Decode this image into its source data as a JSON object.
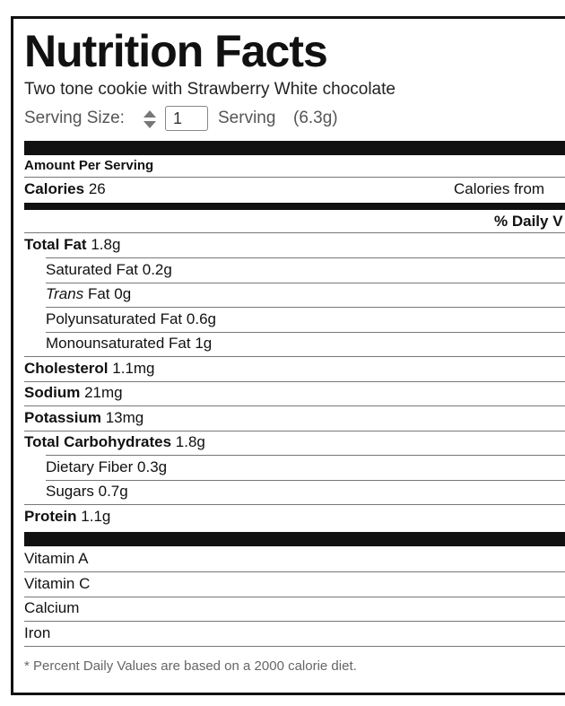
{
  "label": {
    "title": "Nutrition Facts",
    "description": "Two tone cookie with Strawberry White chocolate",
    "serving_size_label": "Serving Size:",
    "serving_quantity": "1",
    "serving_unit": "Serving",
    "serving_weight": "(6.3g)",
    "amount_per_serving": "Amount Per Serving",
    "calories_label": "Calories",
    "calories_value": "26",
    "calories_from": "Calories from",
    "daily_value_header": "% Daily V",
    "nutrients": [
      {
        "name": "Total Fat",
        "amount": "1.8g",
        "bold": true
      },
      {
        "name": "Saturated Fat",
        "amount": "0.2g",
        "indent": true
      },
      {
        "italic_prefix": "Trans",
        "name": "Fat",
        "amount": "0g",
        "indent": true
      },
      {
        "name": "Polyunsaturated Fat",
        "amount": "0.6g",
        "indent": true
      },
      {
        "name": "Monounsaturated Fat",
        "amount": "1g",
        "indent": true
      },
      {
        "name": "Cholesterol",
        "amount": "1.1mg",
        "bold": true
      },
      {
        "name": "Sodium",
        "amount": "21mg",
        "bold": true
      },
      {
        "name": "Potassium",
        "amount": "13mg",
        "bold": true
      },
      {
        "name": "Total Carbohydrates",
        "amount": "1.8g",
        "bold": true
      },
      {
        "name": "Dietary Fiber",
        "amount": "0.3g",
        "indent": true
      },
      {
        "name": "Sugars",
        "amount": "0.7g",
        "indent": true
      },
      {
        "name": "Protein",
        "amount": "1.1g",
        "bold": true
      }
    ],
    "vitamins": [
      "Vitamin A",
      "Vitamin C",
      "Calcium",
      "Iron"
    ],
    "footnote": "* Percent Daily Values are based on a 2000 calorie diet."
  }
}
